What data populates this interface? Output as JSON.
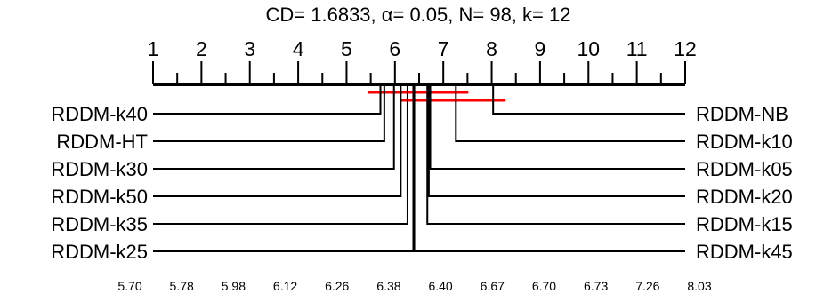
{
  "chart_data": {
    "type": "critical-difference-diagram",
    "title": "CD= 1.6833, α= 0.05, N= 98, k= 12",
    "cd": 1.6833,
    "alpha": 0.05,
    "n": 98,
    "k": 12,
    "axis": {
      "min": 1,
      "max": 12,
      "tick_labels": [
        "1",
        "2",
        "3",
        "4",
        "5",
        "6",
        "7",
        "8",
        "9",
        "10",
        "11",
        "12"
      ],
      "minor_ticks": "every 0.5"
    },
    "methods_left": [
      {
        "name": "RDDM-k40",
        "rank": 5.7
      },
      {
        "name": "RDDM-HT",
        "rank": 5.78
      },
      {
        "name": "RDDM-k30",
        "rank": 5.98
      },
      {
        "name": "RDDM-k50",
        "rank": 6.12
      },
      {
        "name": "RDDM-k35",
        "rank": 6.26
      },
      {
        "name": "RDDM-k25",
        "rank": 6.38
      }
    ],
    "methods_right": [
      {
        "name": "RDDM-NB",
        "rank": 8.03
      },
      {
        "name": "RDDM-k10",
        "rank": 7.26
      },
      {
        "name": "RDDM-k05",
        "rank": 6.73
      },
      {
        "name": "RDDM-k20",
        "rank": 6.7
      },
      {
        "name": "RDDM-k15",
        "rank": 6.67
      },
      {
        "name": "RDDM-k45",
        "rank": 6.4
      }
    ],
    "rank_labels": [
      "5.70",
      "5.78",
      "5.98",
      "6.12",
      "6.26",
      "6.38",
      "6.40",
      "6.67",
      "6.70",
      "6.73",
      "7.26",
      "8.03"
    ],
    "cliques": [
      {
        "from": 5.7,
        "to": 7.26
      },
      {
        "from": 6.38,
        "to": 8.03
      }
    ],
    "colors": {
      "axis": "#000000",
      "clique": "#ff0000"
    }
  }
}
